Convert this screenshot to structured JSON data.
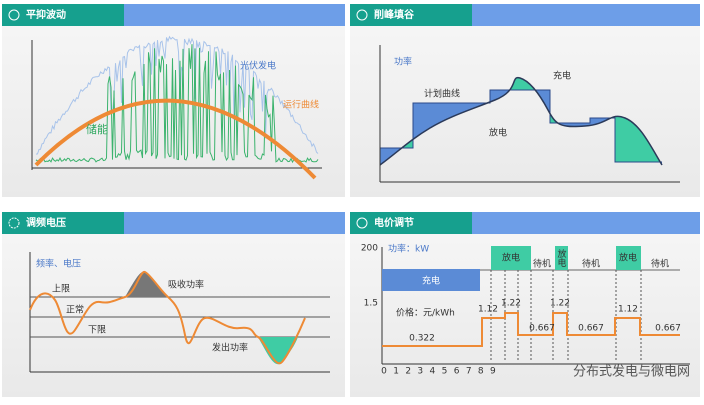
{
  "panels": [
    {
      "title": "平抑波动",
      "labels": [
        "光伏发电",
        "运行曲线",
        "储能"
      ]
    },
    {
      "title": "削峰填谷",
      "labels": [
        "功率",
        "计划曲线",
        "充电",
        "放电"
      ]
    },
    {
      "title": "调频电压",
      "labels": [
        "频率、电压",
        "上限",
        "正常",
        "下限",
        "吸收功率",
        "发出功率"
      ]
    },
    {
      "title": "电价调节",
      "power_axis": {
        "tick": "200",
        "label": "功率：kW"
      },
      "price_axis": {
        "tick": "1.5",
        "label": "价格：元/kWh"
      },
      "modes": [
        "充电",
        "放电",
        "待机",
        "放电",
        "待机",
        "放电",
        "待机"
      ],
      "prices": [
        "1.12",
        "1.22",
        "1.22",
        "0.667",
        "0.667",
        "1.12",
        "0.667",
        "0.322"
      ],
      "hours": [
        "0",
        "1",
        "2",
        "3",
        "4",
        "5",
        "6",
        "7",
        "8",
        "9"
      ]
    }
  ],
  "watermark": "分布式发电与微电网"
}
